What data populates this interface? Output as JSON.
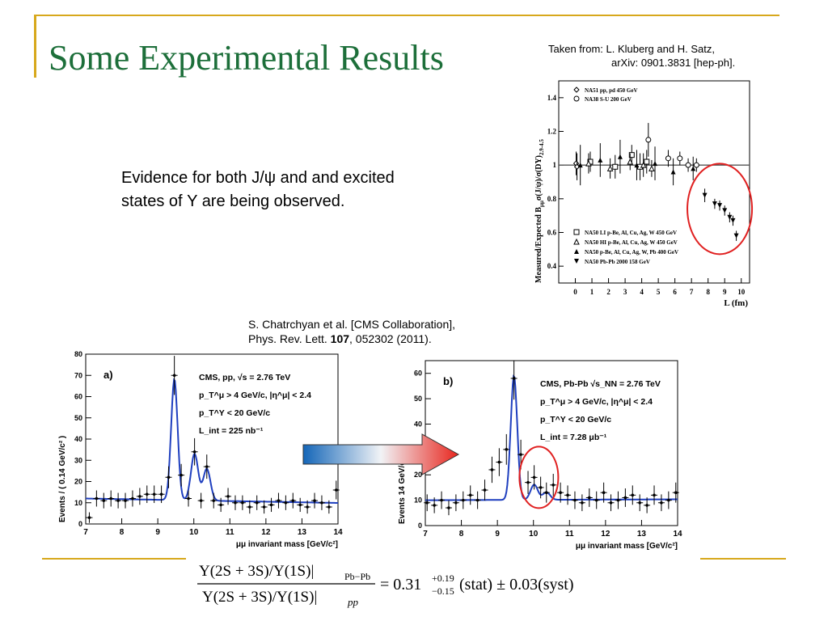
{
  "slide": {
    "title": "Some Experimental Results",
    "cite_top_line1": "Taken from: L. Kluberg and H. Satz,",
    "cite_top_line2": "arXiv: 0901.3831 [hep-ph].",
    "body": "Evidence for both J/ψ and and excited states of Υ are being observed.",
    "cite_mid_line1": "S. Chatrchyan et al. [CMS Collaboration],",
    "cite_mid_line2_a": "Phys. Rev. Lett. ",
    "cite_mid_line2_b": "107",
    "cite_mid_line2_c": ", 052302 (2011)."
  },
  "formula": {
    "numerator": "Υ(2S + 3S)/Υ(1S)|",
    "num_sub": "Pb−Pb",
    "denominator": "Υ(2S + 3S)/Υ(1S)|",
    "den_sub": "pp",
    "rhs_a": "= 0.31",
    "rhs_sup": "+0.19",
    "rhs_sub": "−0.15",
    "rhs_b": "(stat) ± 0.03(syst)"
  },
  "colors": {
    "title": "#1d6f3a",
    "accent_line": "#d7a81c",
    "fit_line": "#1f3fbf",
    "circle": "#e02020",
    "arrow_left": "#1466b8",
    "arrow_right": "#e8261e"
  },
  "chart_data": [
    {
      "type": "scatter",
      "ylabel": "Measured/Expected B",
      "ylabel_sub": "μμ",
      "ylabel_rest": "σ(J/ψ)/σ(DY)",
      "ylabel_sub2": "2.9-4.5",
      "xlabel": "L (fm)",
      "xlim": [
        -1,
        10.5
      ],
      "ylim": [
        0.3,
        1.5
      ],
      "xticks": [
        "0",
        "1",
        "2",
        "3",
        "4",
        "5",
        "6",
        "7",
        "8",
        "9",
        "10"
      ],
      "yticks": [
        "0.4",
        "0.6",
        "0.8",
        "1",
        "1.2",
        "1.4"
      ],
      "legend_top": [
        "NA51 pp, pd 450 GeV",
        "NA38 S-U 200 GeV"
      ],
      "legend_bottom": [
        "NA50 LI p-Be, Al, Cu, Ag, W 450 GeV",
        "NA50 HI p-Be, Al, Cu, Ag, W 450 GeV",
        "NA50 p-Be, Al, Cu, Ag, W, Pb 400 GeV",
        "NA50 Pb-Pb 2000 158 GeV"
      ],
      "series": [
        {
          "name": "NA51 pp, pd 450 GeV",
          "marker": "diamond",
          "points": [
            [
              0.05,
              1.01,
              0.07
            ],
            [
              0.1,
              0.99,
              0.08
            ]
          ]
        },
        {
          "name": "NA38 S-U 200 GeV",
          "marker": "circle",
          "points": [
            [
              4.4,
              1.15,
              0.1
            ],
            [
              5.6,
              1.04,
              0.05
            ],
            [
              6.3,
              1.04,
              0.04
            ],
            [
              6.8,
              1.0,
              0.04
            ],
            [
              7.3,
              1.0,
              0.04
            ]
          ]
        },
        {
          "name": "NA50 LI p-Be, Al, Cu, Ag, W 450 GeV",
          "marker": "square",
          "points": [
            [
              0.9,
              1.02,
              0.06
            ],
            [
              2.4,
              0.99,
              0.07
            ],
            [
              3.4,
              1.06,
              0.06
            ],
            [
              3.9,
              0.99,
              0.08
            ],
            [
              4.3,
              1.02,
              0.07
            ]
          ]
        },
        {
          "name": "NA50 HI p-Be, Al, Cu, Ag, W 450 GeV",
          "marker": "triangle",
          "points": [
            [
              0.8,
              1.01,
              0.06
            ],
            [
              2.1,
              0.98,
              0.06
            ],
            [
              3.3,
              1.02,
              0.05
            ],
            [
              4.1,
              1.0,
              0.07
            ],
            [
              4.6,
              0.98,
              0.05
            ]
          ]
        },
        {
          "name": "NA50 p-Be, Al, Cu, Ag, W, Pb 400 GeV",
          "marker": "triangle-filled",
          "points": [
            [
              0.3,
              1.0,
              0.12
            ],
            [
              1.5,
              1.03,
              0.1
            ],
            [
              2.7,
              1.05,
              0.1
            ],
            [
              3.7,
              1.0,
              0.09
            ],
            [
              4.8,
              1.01,
              0.1
            ],
            [
              5.9,
              0.96,
              0.08
            ],
            [
              7.1,
              0.98,
              0.07
            ]
          ]
        },
        {
          "name": "NA50 Pb-Pb 2000 158 GeV",
          "marker": "triangle-down",
          "points": [
            [
              7.8,
              0.82,
              0.04
            ],
            [
              8.4,
              0.77,
              0.03
            ],
            [
              8.7,
              0.76,
              0.03
            ],
            [
              9.0,
              0.73,
              0.03
            ],
            [
              9.3,
              0.69,
              0.03
            ],
            [
              9.5,
              0.67,
              0.03
            ],
            [
              9.7,
              0.58,
              0.03
            ]
          ]
        }
      ],
      "reference_line": 1.0
    },
    {
      "type": "scatter",
      "label": "a)",
      "title_lines": [
        "CMS, pp, √s = 2.76 TeV",
        "p_T^μ > 4 GeV/c, |η^μ| < 2.4",
        "p_T^Υ < 20 GeV/c",
        "L_int = 225 nb⁻¹"
      ],
      "ylabel": "Events / ( 0.14 GeV/c² )",
      "xlabel": "μμ invariant mass [GeV/c²]",
      "xlim": [
        7,
        14
      ],
      "ylim": [
        0,
        80
      ],
      "xticks": [
        "7",
        "8",
        "9",
        "10",
        "11",
        "12",
        "13",
        "14"
      ],
      "yticks": [
        "0",
        "10",
        "20",
        "30",
        "40",
        "50",
        "60",
        "70",
        "80"
      ],
      "x": [
        7.1,
        7.3,
        7.5,
        7.7,
        7.9,
        8.1,
        8.3,
        8.5,
        8.7,
        8.9,
        9.1,
        9.3,
        9.46,
        9.65,
        9.85,
        10.02,
        10.2,
        10.36,
        10.55,
        10.75,
        10.95,
        11.15,
        11.35,
        11.55,
        11.75,
        11.95,
        12.15,
        12.35,
        12.55,
        12.75,
        12.95,
        13.15,
        13.35,
        13.55,
        13.75,
        13.95
      ],
      "values": [
        3,
        12,
        11,
        12,
        11,
        11,
        12,
        13,
        14,
        14,
        14,
        22,
        70,
        23,
        12,
        34,
        11,
        27,
        11,
        9,
        13,
        10,
        10,
        8,
        10,
        8,
        9,
        11,
        10,
        11,
        9,
        8,
        11,
        10,
        8,
        16
      ]
    },
    {
      "type": "scatter",
      "label": "b)",
      "title_lines": [
        "CMS, Pb-Pb √s_NN = 2.76 TeV",
        "p_T^μ > 4 GeV/c, |η^μ| < 2.4",
        "p_T^Υ < 20 GeV/c",
        "L_int = 7.28 μb⁻¹"
      ],
      "ylabel": "14 GeV/c² )",
      "ylabel_prefix": "Events",
      "xlabel": "μμ invariant mass [GeV/c²]",
      "xlim": [
        7,
        14
      ],
      "ylim": [
        0,
        65
      ],
      "xticks": [
        "7",
        "8",
        "9",
        "10",
        "11",
        "12",
        "13",
        "14"
      ],
      "yticks": [
        "0",
        "10",
        "20",
        "30",
        "40",
        "50",
        "60"
      ],
      "x": [
        7.05,
        7.25,
        7.45,
        7.65,
        7.85,
        8.05,
        8.25,
        8.45,
        8.65,
        8.85,
        9.05,
        9.25,
        9.46,
        9.65,
        9.85,
        10.02,
        10.2,
        10.36,
        10.55,
        10.75,
        10.95,
        11.15,
        11.35,
        11.55,
        11.75,
        11.95,
        12.15,
        12.35,
        12.55,
        12.75,
        12.95,
        13.15,
        13.35,
        13.55,
        13.75,
        13.95
      ],
      "values": [
        9,
        8,
        10,
        7,
        9,
        10,
        12,
        10,
        14,
        22,
        25,
        30,
        58,
        28,
        17,
        19,
        15,
        13,
        16,
        13,
        12,
        10,
        9,
        11,
        10,
        13,
        9,
        10,
        11,
        12,
        9,
        8,
        12,
        9,
        10,
        13
      ]
    }
  ]
}
